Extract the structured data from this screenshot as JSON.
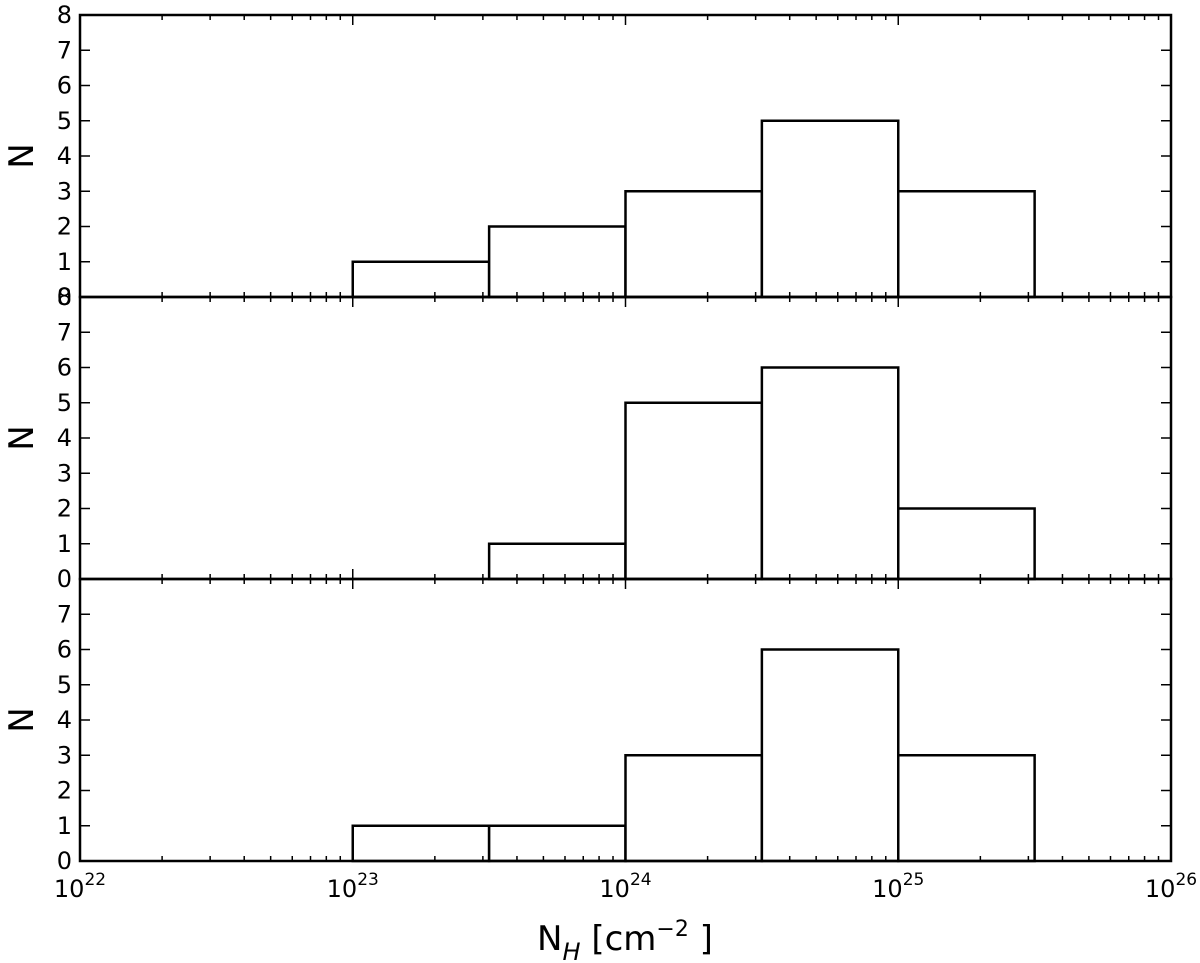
{
  "chart_data": {
    "type": "bar",
    "x_scale": "log",
    "xlim": [
      1e+22,
      1e+26
    ],
    "x_tick_labels": [
      {
        "base": "10",
        "exp": "22"
      },
      {
        "base": "10",
        "exp": "23"
      },
      {
        "base": "10",
        "exp": "24"
      },
      {
        "base": "10",
        "exp": "25"
      },
      {
        "base": "10",
        "exp": "26"
      }
    ],
    "xlabel": {
      "main": "N",
      "sub": "H",
      "units_pre": "[cm",
      "units_exp": "−2",
      "units_post": "]"
    },
    "ylabel": "N",
    "bin_edges_log10": [
      22.0,
      22.5,
      23.0,
      23.5,
      24.0,
      24.5,
      25.0,
      25.5,
      26.0
    ],
    "panels": [
      {
        "ylim": [
          0,
          8
        ],
        "y_ticks": [
          "0",
          "1",
          "2",
          "3",
          "4",
          "5",
          "6",
          "7",
          "8"
        ],
        "values": [
          0,
          0,
          1,
          2,
          3,
          5,
          3,
          0
        ]
      },
      {
        "ylim": [
          0,
          8
        ],
        "y_ticks": [
          "0",
          "1",
          "2",
          "3",
          "4",
          "5",
          "6",
          "7",
          "8"
        ],
        "values": [
          0,
          0,
          0,
          1,
          5,
          6,
          2,
          0
        ]
      },
      {
        "ylim": [
          0,
          8
        ],
        "y_ticks": [
          "0",
          "1",
          "2",
          "3",
          "4",
          "5",
          "6",
          "7"
        ],
        "values": [
          0,
          0,
          1,
          1,
          3,
          6,
          3,
          0
        ]
      }
    ],
    "grid": false,
    "legend": "none"
  }
}
